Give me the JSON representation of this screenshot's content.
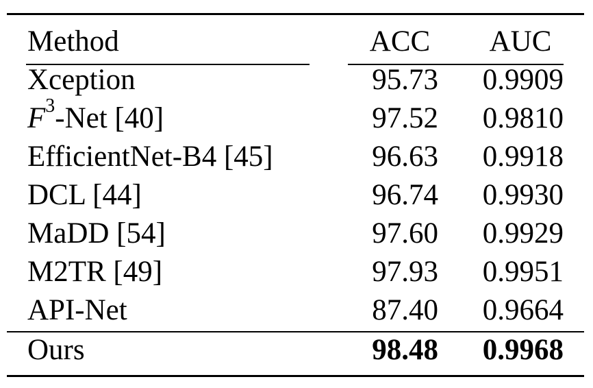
{
  "table": {
    "headers": {
      "method": "Method",
      "acc": "ACC",
      "auc": "AUC"
    },
    "rows": [
      {
        "method": "Xception",
        "acc": "95.73",
        "auc": "0.9909"
      },
      {
        "method_prefix": "F",
        "method_sup": "3",
        "method": "-Net [40]",
        "acc": "97.52",
        "auc": "0.9810"
      },
      {
        "method": "EfficientNet-B4 [45]",
        "acc": "96.63",
        "auc": "0.9918"
      },
      {
        "method": "DCL [44]",
        "acc": "96.74",
        "auc": "0.9930"
      },
      {
        "method": "MaDD [54]",
        "acc": "97.60",
        "auc": "0.9929"
      },
      {
        "method": "M2TR [49]",
        "acc": "97.93",
        "auc": "0.9951"
      },
      {
        "method": "API-Net",
        "acc": "87.40",
        "auc": "0.9664"
      }
    ],
    "ours": {
      "method": "Ours",
      "acc": "98.48",
      "auc": "0.9968"
    }
  }
}
